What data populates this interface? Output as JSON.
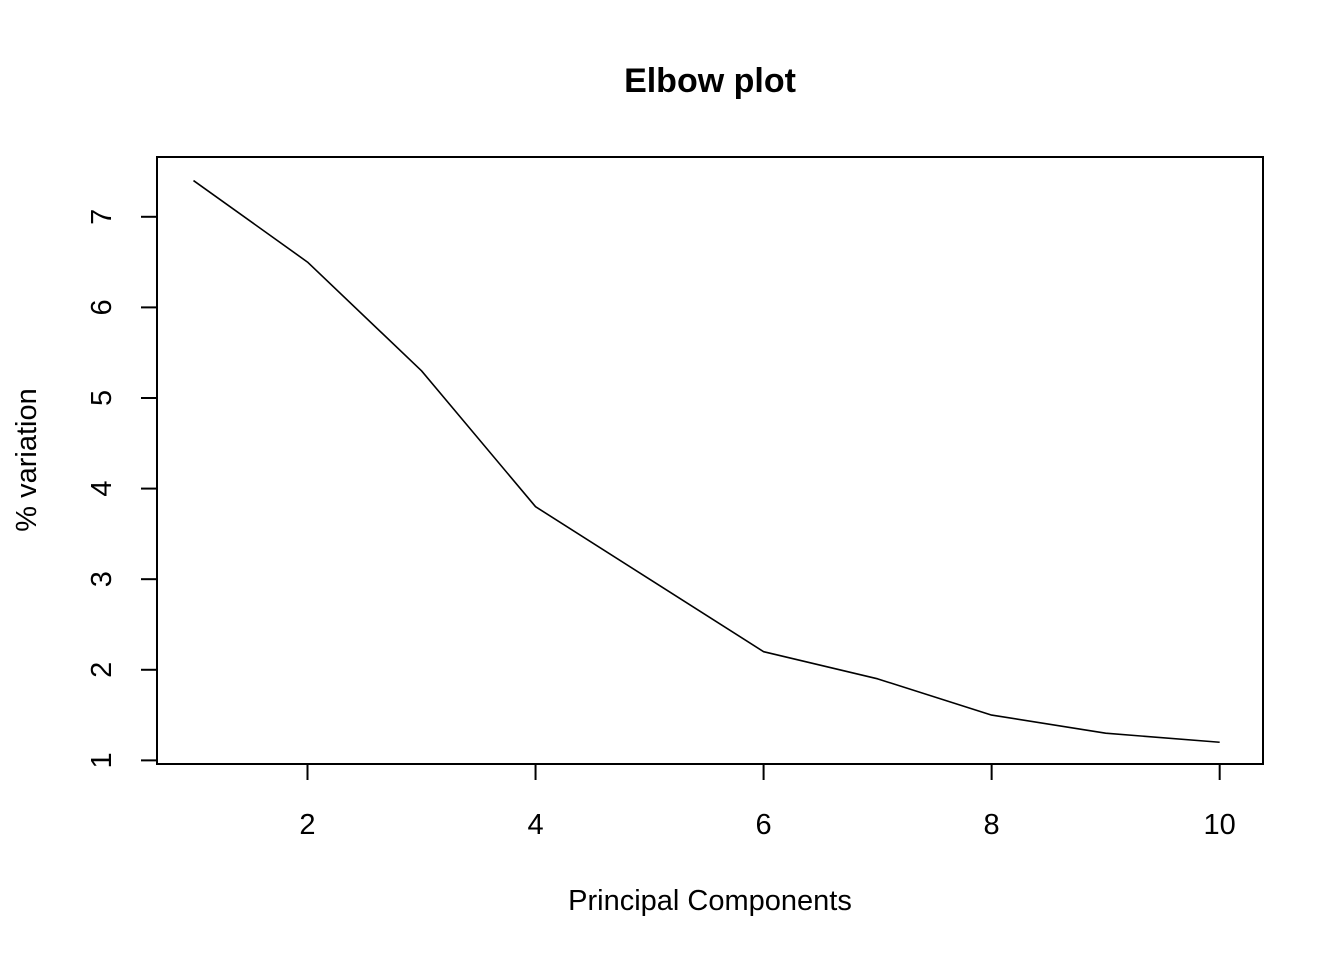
{
  "chart_data": {
    "type": "line",
    "title": "Elbow plot",
    "xlabel": "Principal Components",
    "ylabel": "% variation",
    "x": [
      1,
      2,
      3,
      4,
      5,
      6,
      7,
      8,
      9,
      10
    ],
    "series": [
      {
        "values": [
          7.4,
          6.5,
          5.3,
          3.8,
          3.0,
          2.2,
          1.9,
          1.5,
          1.3,
          1.2
        ]
      }
    ],
    "xlim": [
      0.68,
      10.38
    ],
    "ylim": [
      0.96,
      7.66
    ],
    "xticks": [
      2,
      4,
      6,
      8,
      10
    ],
    "yticks": [
      1,
      2,
      3,
      4,
      5,
      6,
      7
    ],
    "grid": false,
    "line_color": "#000000"
  }
}
